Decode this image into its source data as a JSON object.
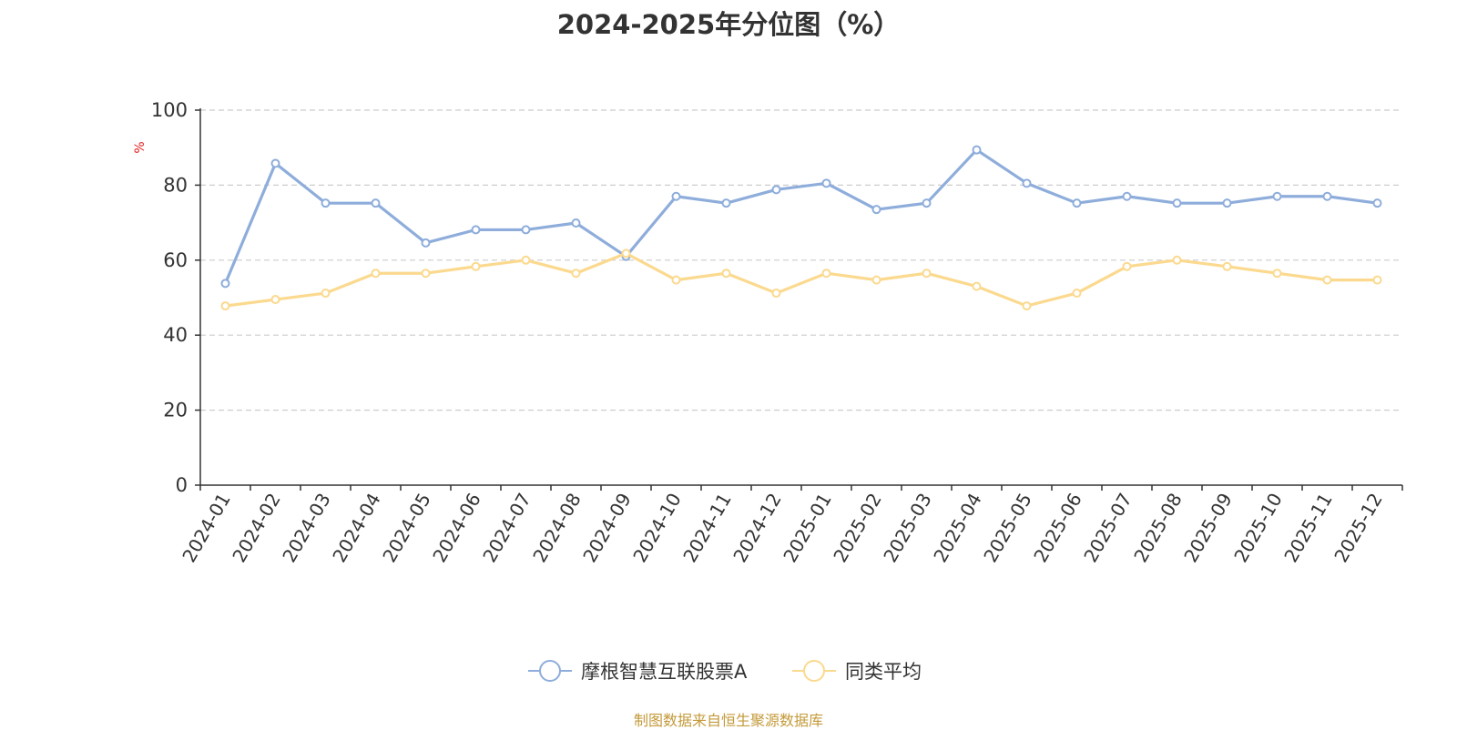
{
  "chart_data": {
    "type": "line",
    "title": "2024-2025年分位图（%）",
    "ylabel": "%",
    "xlabel": "",
    "ylim": [
      0,
      100
    ],
    "yticks": [
      0,
      20,
      40,
      60,
      80,
      100
    ],
    "grid": true,
    "legend_position": "bottom",
    "categories": [
      "2024-01",
      "2024-02",
      "2024-03",
      "2024-04",
      "2024-05",
      "2024-06",
      "2024-07",
      "2024-08",
      "2024-09",
      "2024-10",
      "2024-11",
      "2024-12",
      "2025-01",
      "2025-02",
      "2025-03",
      "2025-04",
      "2025-05",
      "2025-06",
      "2025-07",
      "2025-08",
      "2025-09",
      "2025-10",
      "2025-11",
      "2025-12"
    ],
    "series": [
      {
        "name": "摩根智慧互联股票A",
        "color": "#8eaddb",
        "values": [
          53.8,
          85.8,
          75.2,
          75.2,
          64.6,
          68.1,
          68.1,
          69.9,
          61.0,
          77.0,
          75.2,
          78.8,
          80.5,
          73.5,
          75.2,
          89.4,
          80.5,
          75.2,
          77.0,
          75.2,
          75.2,
          77.0,
          77.0,
          75.2
        ]
      },
      {
        "name": "同类平均",
        "color": "#fbd98e",
        "values": [
          47.8,
          49.5,
          51.2,
          56.5,
          56.5,
          58.3,
          60.0,
          56.5,
          61.8,
          54.7,
          56.5,
          51.2,
          56.5,
          54.7,
          56.5,
          53.0,
          47.8,
          51.2,
          58.3,
          60.0,
          58.3,
          56.5,
          54.7,
          54.7
        ]
      }
    ]
  },
  "source": "制图数据来自恒生聚源数据库",
  "colors": {
    "axis": "#333333",
    "grid": "#cccccc",
    "ylabel": "#e02020",
    "source": "#c49a3a"
  }
}
